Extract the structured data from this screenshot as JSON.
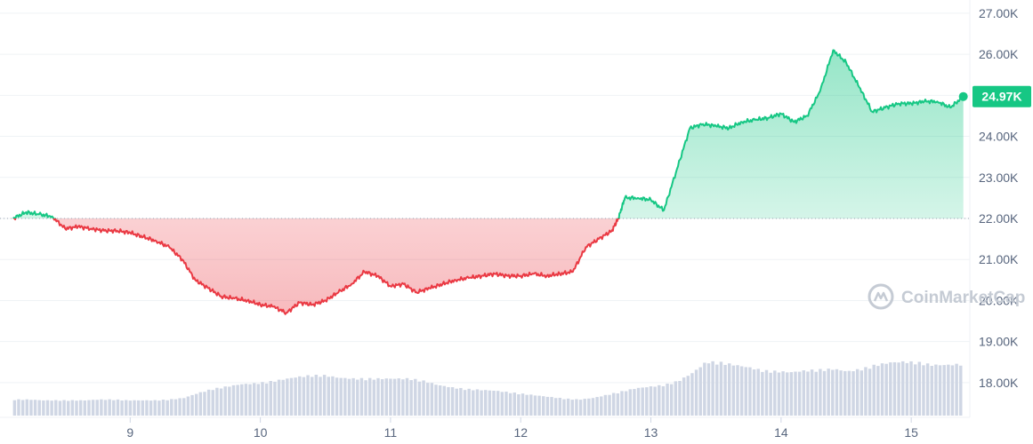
{
  "chart_data": {
    "type": "line",
    "series": [
      {
        "values_unit": "USD",
        "x": [
          8.1,
          8.2,
          8.3,
          8.4,
          8.5,
          8.6,
          8.7,
          8.8,
          8.9,
          9.0,
          9.1,
          9.2,
          9.3,
          9.4,
          9.5,
          9.6,
          9.7,
          9.8,
          9.9,
          10.0,
          10.1,
          10.2,
          10.3,
          10.4,
          10.5,
          10.6,
          10.7,
          10.8,
          10.9,
          11.0,
          11.1,
          11.2,
          11.3,
          11.4,
          11.5,
          11.6,
          11.7,
          11.8,
          11.9,
          12.0,
          12.1,
          12.2,
          12.3,
          12.4,
          12.5,
          12.6,
          12.7,
          12.75,
          12.8,
          12.9,
          13.0,
          13.1,
          13.2,
          13.3,
          13.4,
          13.5,
          13.6,
          13.7,
          13.8,
          13.9,
          14.0,
          14.1,
          14.2,
          14.3,
          14.4,
          14.5,
          14.6,
          14.7,
          14.8,
          14.9,
          15.0,
          15.1,
          15.2,
          15.3,
          15.4
        ],
        "values": [
          22000,
          22150,
          22100,
          22050,
          21750,
          21800,
          21750,
          21700,
          21700,
          21650,
          21550,
          21450,
          21300,
          21000,
          20500,
          20300,
          20100,
          20050,
          20000,
          19900,
          19850,
          19700,
          19950,
          19900,
          20000,
          20200,
          20400,
          20700,
          20600,
          20350,
          20400,
          20200,
          20300,
          20400,
          20500,
          20550,
          20600,
          20650,
          20600,
          20600,
          20650,
          20600,
          20650,
          20700,
          21300,
          21500,
          21700,
          22000,
          22500,
          22500,
          22450,
          22200,
          23200,
          24200,
          24300,
          24250,
          24200,
          24350,
          24400,
          24450,
          24550,
          24350,
          24500,
          25100,
          26100,
          25800,
          25200,
          24600,
          24700,
          24800,
          24800,
          24850,
          24850,
          24700,
          24970
        ]
      }
    ],
    "volume": {
      "x_start": 8.1,
      "x_end": 15.4,
      "relative_levels": [
        0.2,
        0.2,
        0.19,
        0.19,
        0.19,
        0.19,
        0.2,
        0.2,
        0.19,
        0.19,
        0.19,
        0.2,
        0.22,
        0.28,
        0.33,
        0.36,
        0.39,
        0.4,
        0.42,
        0.45,
        0.48,
        0.5,
        0.5,
        0.47,
        0.46,
        0.46,
        0.46,
        0.46,
        0.46,
        0.43,
        0.38,
        0.35,
        0.33,
        0.32,
        0.31,
        0.29,
        0.27,
        0.25,
        0.23,
        0.21,
        0.2,
        0.22,
        0.26,
        0.3,
        0.34,
        0.36,
        0.38,
        0.43,
        0.53,
        0.67,
        0.66,
        0.63,
        0.6,
        0.56,
        0.55,
        0.54,
        0.56,
        0.57,
        0.58,
        0.55,
        0.58,
        0.63,
        0.66,
        0.67,
        0.66,
        0.63,
        0.63,
        0.64
      ]
    },
    "baseline": 22000,
    "current_price": 24970,
    "current_price_label": "24.97K",
    "y_ticks": [
      18000,
      19000,
      20000,
      21000,
      22000,
      23000,
      24000,
      25000,
      26000,
      27000
    ],
    "y_tick_labels": [
      "18.00K",
      "19.00K",
      "20.00K",
      "21.00K",
      "22.00K",
      "23.00K",
      "24.00K",
      "25.00K",
      "26.00K",
      "27.00K"
    ],
    "ylim": [
      17500,
      27300
    ],
    "x_ticks": [
      9,
      10,
      11,
      12,
      13,
      14,
      15
    ],
    "x_tick_labels": [
      "9",
      "10",
      "11",
      "12",
      "13",
      "14",
      "15"
    ],
    "xlim": [
      8.0,
      15.45
    ],
    "grid": true,
    "colors": {
      "up": "#16c784",
      "down": "#ea3943",
      "volume": "#cfd6e4",
      "grid": "#eff2f5",
      "baseline": "#9aa3b2",
      "tick": "#58667e"
    },
    "watermark": "CoinMarketCap"
  }
}
